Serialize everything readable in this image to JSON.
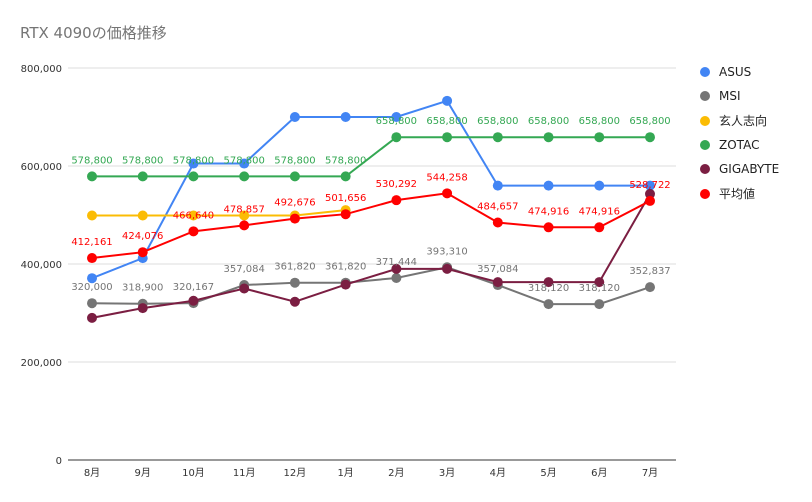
{
  "chart_data": {
    "type": "line",
    "title": "RTX 4090の価格推移",
    "categories": [
      "8月",
      "9月",
      "10月",
      "11月",
      "12月",
      "1月",
      "2月",
      "3月",
      "4月",
      "5月",
      "6月",
      "7月"
    ],
    "ylim": [
      0,
      800000
    ],
    "yticks": [
      0,
      200000,
      400000,
      600000,
      800000
    ],
    "ytick_labels": [
      "0",
      "200,000",
      "400,000",
      "600,000",
      "800,000"
    ],
    "grid": true,
    "legend_position": "right",
    "series": [
      {
        "name": "ASUS",
        "color": "#4285f4",
        "values": [
          371000,
          412000,
          605000,
          605000,
          700000,
          700000,
          700000,
          733000,
          560000,
          560000,
          560000,
          560000
        ],
        "labels": []
      },
      {
        "name": "MSI",
        "color": "#757575",
        "values": [
          320000,
          318900,
          320167,
          357084,
          361820,
          361820,
          371444,
          393310,
          357084,
          318120,
          318120,
          352837
        ],
        "labels": [
          "320,000",
          "318,900",
          "320,167",
          "357,084",
          "361,820",
          "361,820",
          "371,444",
          "393,310",
          "357,084",
          "318,120",
          "318,120",
          "352,837"
        ]
      },
      {
        "name": "玄人志向",
        "color": "#fbbc04",
        "values": [
          499000,
          499000,
          499000,
          499000,
          499000,
          510000,
          null,
          null,
          null,
          null,
          null,
          null
        ],
        "labels": []
      },
      {
        "name": "ZOTAC",
        "color": "#34a853",
        "values": [
          578800,
          578800,
          578800,
          578800,
          578800,
          578800,
          658800,
          658800,
          658800,
          658800,
          658800,
          658800
        ],
        "labels": [
          "578,800",
          "578,800",
          "578,800",
          "578,800",
          "578,800",
          "578,800",
          "658,800",
          "658,800",
          "658,800",
          "658,800",
          "658,800",
          "658,800"
        ]
      },
      {
        "name": "GIGABYTE",
        "color": "#7b1e42",
        "values": [
          290000,
          310000,
          325000,
          350000,
          323000,
          358000,
          390000,
          390000,
          363000,
          363000,
          363000,
          543000
        ],
        "labels": []
      },
      {
        "name": "平均値",
        "color": "#ff0000",
        "values": [
          412161,
          424076,
          466640,
          478857,
          492676,
          501656,
          530292,
          544258,
          484657,
          474916,
          474916,
          528722
        ],
        "labels": [
          "412,161",
          "424,076",
          "466,640",
          "478,857",
          "492,676",
          "501,656",
          "530,292",
          "544,258",
          "484,657",
          "474,916",
          "474,916",
          "528,722"
        ]
      }
    ]
  }
}
